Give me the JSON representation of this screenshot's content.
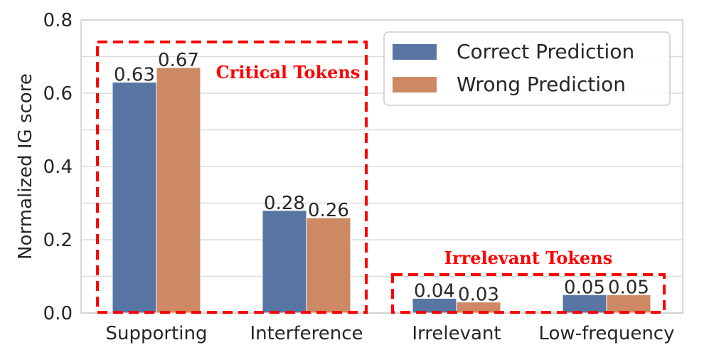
{
  "chart_data": {
    "type": "bar",
    "ylabel": "Normalized IG score",
    "xlabel": "",
    "ylim": [
      0,
      0.8
    ],
    "yticks": [
      "0.0",
      "0.2",
      "0.4",
      "0.6",
      "0.8"
    ],
    "grid": true,
    "legend_position": "top-right",
    "categories": [
      "Supporting",
      "Interference",
      "Irrelevant",
      "Low-frequency"
    ],
    "series": [
      {
        "name": "Correct Prediction",
        "color": "#5875a4",
        "values": [
          0.63,
          0.28,
          0.04,
          0.05
        ],
        "labels": [
          "0.63",
          "0.28",
          "0.04",
          "0.05"
        ]
      },
      {
        "name": "Wrong Prediction",
        "color": "#cc8963",
        "values": [
          0.67,
          0.26,
          0.03,
          0.05
        ],
        "labels": [
          "0.67",
          "0.26",
          "0.03",
          "0.05"
        ]
      }
    ],
    "annotations": [
      {
        "text": "Critical Tokens",
        "color": "#ff0000",
        "groups": [
          "Supporting",
          "Interference"
        ]
      },
      {
        "text": "Irrelevant Tokens",
        "color": "#ff0000",
        "groups": [
          "Irrelevant",
          "Low-frequency"
        ]
      }
    ]
  }
}
